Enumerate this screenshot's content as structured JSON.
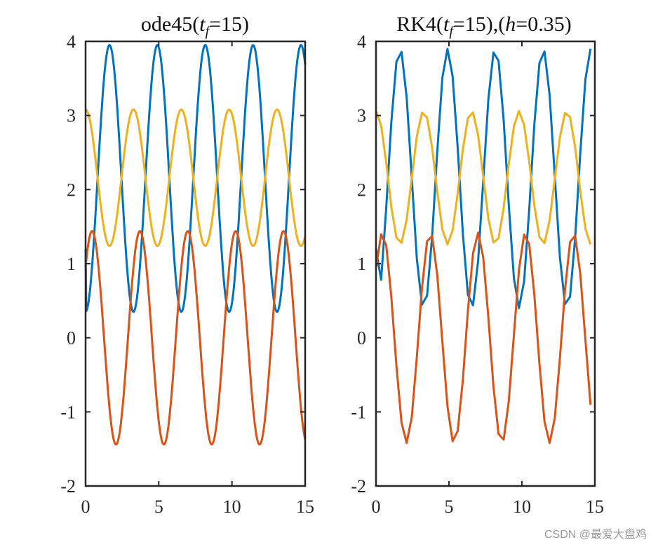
{
  "figure": {
    "watermark": "CSDN @最爱大盘鸡"
  },
  "chart_data": [
    {
      "type": "line",
      "title": {
        "main": "ode45(",
        "var": "t",
        "sub": "f",
        "rest": "=15)"
      },
      "xlim": [
        0,
        15
      ],
      "ylim": [
        -2,
        4
      ],
      "xticks": [
        0,
        5,
        10,
        15
      ],
      "yticks": [
        -2,
        -1,
        0,
        1,
        2,
        3,
        4
      ],
      "grid": false,
      "series": [
        {
          "color": "#0072BD",
          "fn": "1-cos",
          "amp": 1.8,
          "center": 2.15,
          "phase": 0,
          "t0": 0,
          "t1": 15,
          "step": 0.05
        },
        {
          "color": "#D95319",
          "fn": "sin-shift",
          "amp": 1.44,
          "center": 0,
          "phase": 0.72,
          "t0": 0,
          "t1": 15,
          "step": 0.05
        },
        {
          "color": "#EDB120",
          "fn": "cos",
          "amp": 0.92,
          "center": 2.16,
          "phase": 0,
          "t0": 0,
          "t1": 15,
          "step": 0.05
        }
      ]
    },
    {
      "type": "line",
      "title": {
        "main": "RK4(",
        "var": "t",
        "sub": "f",
        "rest": "=15),(",
        "var2": "h",
        "rest2": "=0.35)"
      },
      "xlim": [
        0,
        15
      ],
      "ylim": [
        -2,
        4
      ],
      "xticks": [
        0,
        5,
        10,
        15
      ],
      "yticks": [
        -2,
        -1,
        0,
        1,
        2,
        3,
        4
      ],
      "grid": false,
      "series": [
        {
          "color": "#0072BD",
          "fn": "1-cos",
          "amp": 1.75,
          "center": 2.15,
          "phase": 0,
          "t0": 0,
          "t1": 15,
          "step": 0.35
        },
        {
          "color": "#D95319",
          "fn": "sin-shift",
          "amp": 1.42,
          "center": 0,
          "phase": 0.72,
          "t0": 0,
          "t1": 15,
          "step": 0.35
        },
        {
          "color": "#EDB120",
          "fn": "cos",
          "amp": 0.9,
          "center": 2.16,
          "phase": 0,
          "t0": 0,
          "t1": 15,
          "step": 0.35
        }
      ]
    }
  ]
}
